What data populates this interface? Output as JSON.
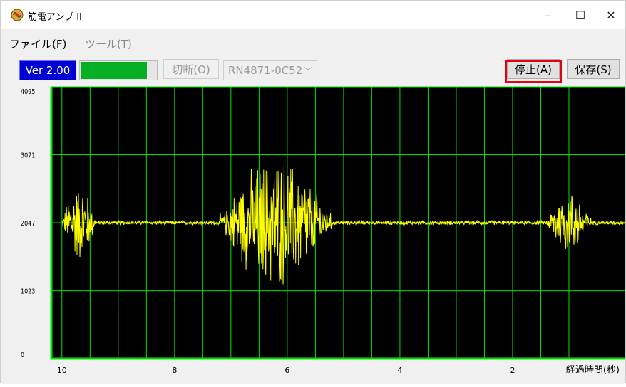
{
  "window": {
    "title": "筋電アンプ II",
    "icon": "emg-amp-app-icon",
    "controls": {
      "minimize": "–",
      "maximize": "☐",
      "close": "✕"
    }
  },
  "menu": {
    "file": "ファイル(F)",
    "tools": "ツール(T)"
  },
  "toolbar": {
    "version": "Ver 2.00",
    "signal_level_fraction": 0.88,
    "signal_color": "#06b025",
    "disconnect": "切断(O)",
    "device_selected": "RN4871-0C52",
    "stop": "停止(A)",
    "save": "保存(S)"
  },
  "highlight_color": "#e60012",
  "chart_data": {
    "type": "line",
    "series_color": "#ffff00",
    "grid_color": "#00e000",
    "background": "#000000",
    "ylim": [
      0,
      4095
    ],
    "y_ticks": [
      "4095",
      "3071",
      "2047",
      "1023",
      "0"
    ],
    "x_ticks": [
      "10",
      "8",
      "6",
      "4",
      "2"
    ],
    "xlabel": "経過時間(秒)",
    "baseline": 2047,
    "bursts": [
      {
        "x_start": 10.0,
        "x_end": 9.4,
        "amplitude": 650
      },
      {
        "x_start": 7.2,
        "x_end": 5.2,
        "amplitude": 1100
      },
      {
        "x_start": 1.4,
        "x_end": 0.6,
        "amplitude": 550
      }
    ]
  }
}
